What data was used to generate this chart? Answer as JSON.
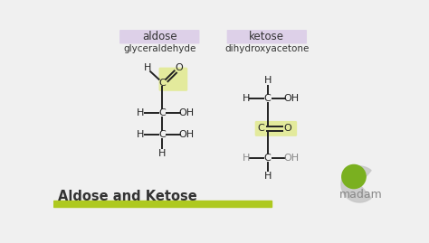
{
  "bg_color": "#f0f0f0",
  "aldose_label": "aldose",
  "ketose_label": "ketose",
  "aldose_box_color": "#ddd0e8",
  "ketose_box_color": "#ddd0e8",
  "aldose_name": "glyceraldehyde",
  "ketose_name": "dihydroxyacetone",
  "bottom_text": "Aldose and Ketose",
  "bottom_bar_color": "#aec920",
  "bond_color": "#222222",
  "highlight_aldose": "#dce870",
  "highlight_ketose": "#dce870",
  "bio_green": "#7ab020",
  "logo_gray": "#c8c8c8",
  "madam_color": "#888888",
  "text_dark": "#333333",
  "text_mid": "#555555"
}
